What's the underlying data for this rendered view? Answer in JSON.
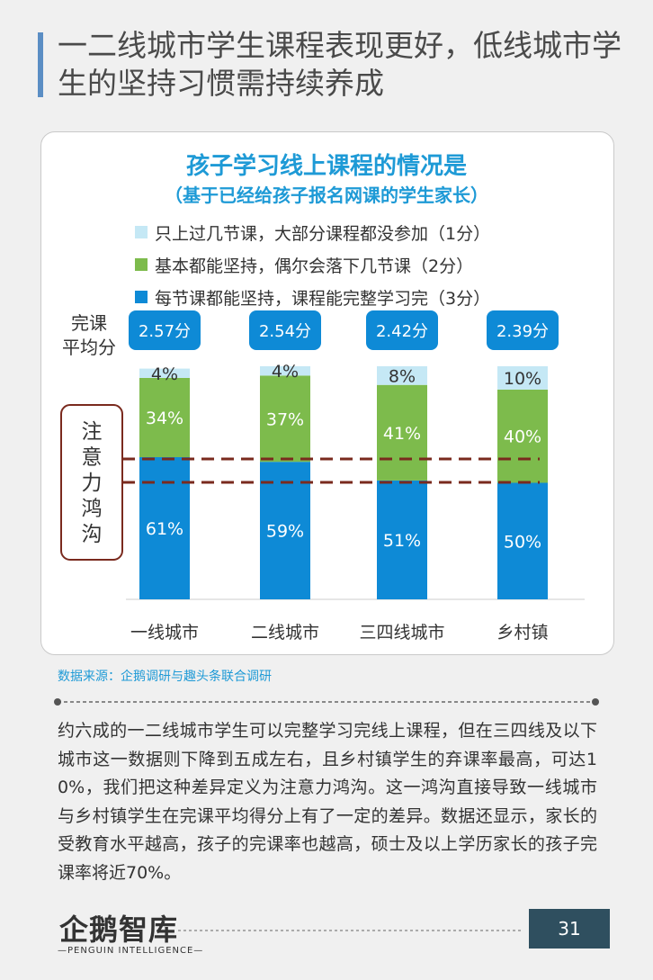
{
  "page": {
    "title": "一二线城市学生课程表现更好，低线城市学生的坚持习惯需持续养成",
    "source": "数据来源：企鹅调研与趣头条联合调研",
    "body": "约六成的一二线城市学生可以完整学习完线上课程，但在三四线及以下城市这一数据则下降到五成左右，且乡村镇学生的弃课率最高，可达10%，我们把这种差异定义为注意力鸿沟。这一鸿沟直接导致一线城市与乡村镇学生在完课平均得分上有了一定的差异。数据还显示，家长的受教育水平越高，孩子的完课率也越高，硕士及以上学历家长的孩子完课率将近70%。",
    "logo": "企鹅智库",
    "logo_sub": "—PENGUIN INTELLIGENCE—",
    "page_number": "31"
  },
  "chart_data": {
    "type": "bar",
    "stacked": true,
    "title": "孩子学习线上课程的情况是",
    "subtitle": "（基于已经给孩子报名网课的学生家长）",
    "categories": [
      "一线城市",
      "二线城市",
      "三四线城市",
      "乡村镇"
    ],
    "series": [
      {
        "name": "每节课都能坚持，课程能完整学习完（3分）",
        "color": "#0e8ad6",
        "values": [
          61,
          59,
          51,
          50
        ]
      },
      {
        "name": "基本都能坚持，偶尔会落下几节课（2分）",
        "color": "#7dbb4c",
        "values": [
          34,
          37,
          41,
          40
        ]
      },
      {
        "name": "只上过几节课，大部分课程都没参加（1分）",
        "color": "#c5e8f5",
        "values": [
          4,
          4,
          8,
          10
        ]
      }
    ],
    "unit": "%",
    "legend_position": "top",
    "avg_label": "完课平均分",
    "avg_scores": [
      "2.57分",
      "2.54分",
      "2.42分",
      "2.39分"
    ],
    "annotation": "注意力鸿沟"
  }
}
